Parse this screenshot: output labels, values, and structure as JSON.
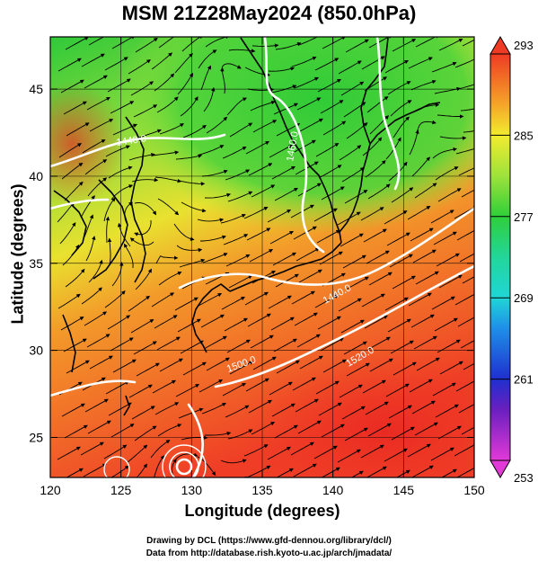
{
  "title": "MSM 21Z28May2024 (850.0hPa)",
  "xaxis": {
    "label": "Longitude (degrees)",
    "ticks": [
      120,
      125,
      130,
      135,
      140,
      145,
      150
    ]
  },
  "yaxis": {
    "label": "Latitude  (degrees)",
    "ticks": [
      25,
      30,
      35,
      40,
      45
    ]
  },
  "colorbar": {
    "ticks": [
      253,
      261,
      269,
      277,
      285,
      293
    ],
    "stops": [
      {
        "v": 253,
        "color": "#e23ad7"
      },
      {
        "v": 258,
        "color": "#6a1fbf"
      },
      {
        "v": 261,
        "color": "#1f2fd0"
      },
      {
        "v": 266,
        "color": "#1f8fe8"
      },
      {
        "v": 269,
        "color": "#1fd6d6"
      },
      {
        "v": 273,
        "color": "#22d69a"
      },
      {
        "v": 277,
        "color": "#2fcf3a"
      },
      {
        "v": 281,
        "color": "#9ee23a"
      },
      {
        "v": 285,
        "color": "#f2ec2e"
      },
      {
        "v": 288,
        "color": "#f5a628"
      },
      {
        "v": 293,
        "color": "#ef3a24"
      }
    ]
  },
  "contours": [
    {
      "label": "1440.0"
    },
    {
      "label": "1460.0"
    },
    {
      "label": "1500.0"
    },
    {
      "label": "1520.0"
    },
    {
      "label": "1440.0"
    }
  ],
  "credits": [
    "Drawing by DCL (https://www.gfd-dennou.org/library/dcl/)",
    "Data from http://database.rish.kyoto-u.ac.jp/arch/jmadata/"
  ]
}
